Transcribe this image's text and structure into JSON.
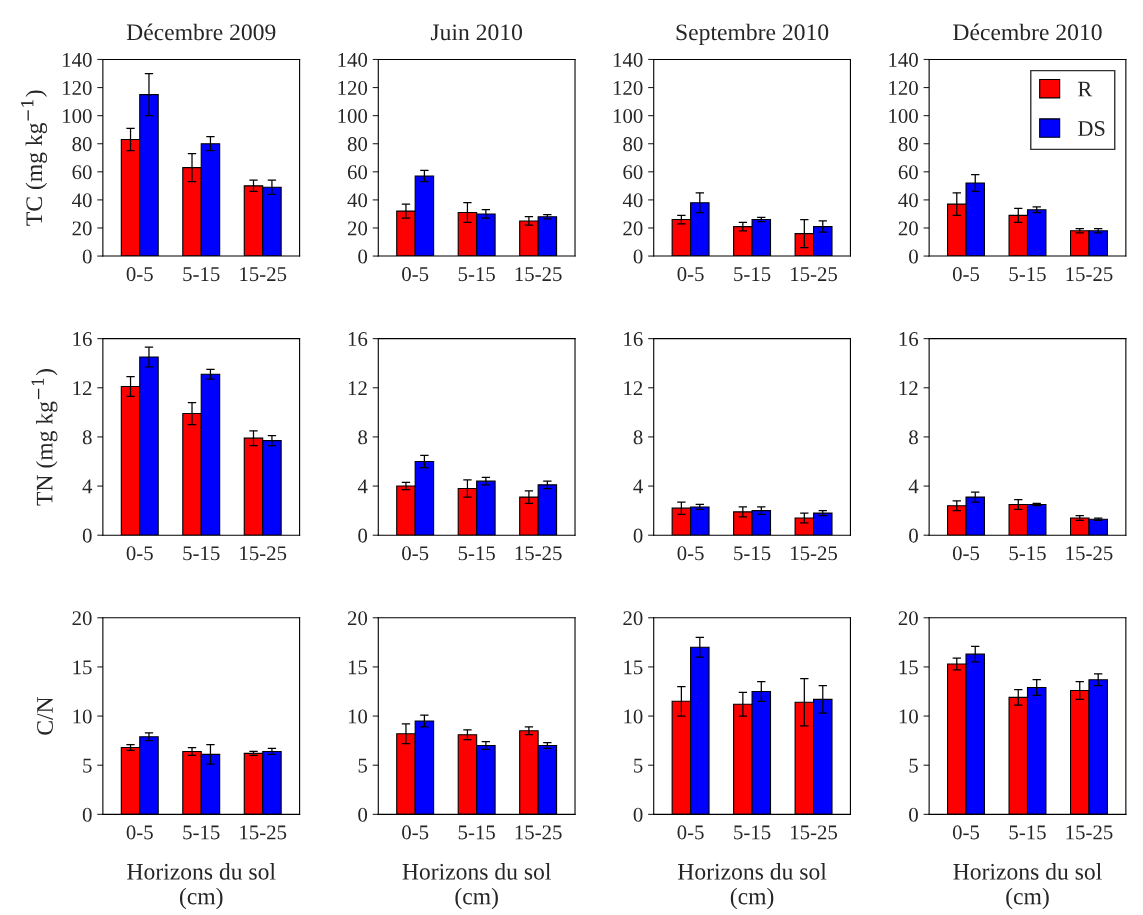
{
  "chart_data": [
    {
      "type": "bar",
      "title": "Décembre 2009",
      "ylabel": "TC (mg kg$^{−1}$)",
      "categories": [
        "0-5",
        "5-15",
        "15-25"
      ],
      "ylim": [
        0,
        140
      ],
      "yticks": [
        0,
        20,
        40,
        60,
        80,
        100,
        120,
        140
      ],
      "series": [
        {
          "color": "#ff0000",
          "values": [
            83,
            63,
            50
          ],
          "errors": [
            8,
            10,
            4
          ]
        },
        {
          "color": "#0000ff",
          "values": [
            115,
            80,
            49
          ],
          "errors": [
            15,
            5,
            5
          ]
        }
      ]
    },
    {
      "type": "bar",
      "title": "Juin 2010",
      "categories": [
        "0-5",
        "5-15",
        "15-25"
      ],
      "ylim": [
        0,
        140
      ],
      "yticks": [
        0,
        20,
        40,
        60,
        80,
        100,
        120,
        140
      ],
      "series": [
        {
          "color": "#ff0000",
          "values": [
            32,
            31,
            25
          ],
          "errors": [
            5,
            7,
            3
          ]
        },
        {
          "color": "#0000ff",
          "values": [
            57,
            30,
            28
          ],
          "errors": [
            4,
            3,
            1.5
          ]
        }
      ]
    },
    {
      "type": "bar",
      "title": "Septembre 2010",
      "categories": [
        "0-5",
        "5-15",
        "15-25"
      ],
      "ylim": [
        0,
        140
      ],
      "yticks": [
        0,
        20,
        40,
        60,
        80,
        100,
        120,
        140
      ],
      "series": [
        {
          "color": "#ff0000",
          "values": [
            26,
            21,
            16
          ],
          "errors": [
            3,
            3,
            10
          ]
        },
        {
          "color": "#0000ff",
          "values": [
            38,
            26,
            21
          ],
          "errors": [
            7,
            1.5,
            4
          ]
        }
      ]
    },
    {
      "type": "bar",
      "title": "Décembre 2010",
      "categories": [
        "0-5",
        "5-15",
        "15-25"
      ],
      "ylim": [
        0,
        140
      ],
      "yticks": [
        0,
        20,
        40,
        60,
        80,
        100,
        120,
        140
      ],
      "legend": "top right",
      "series": [
        {
          "name": "R",
          "color": "#ff0000",
          "values": [
            37,
            29,
            18
          ],
          "errors": [
            8,
            5,
            1.5
          ]
        },
        {
          "name": "DS",
          "color": "#0000ff",
          "values": [
            52,
            33,
            18
          ],
          "errors": [
            6,
            2,
            1.5
          ]
        }
      ]
    },
    {
      "type": "bar",
      "ylabel": "TN (mg kg$^{−1}$)",
      "categories": [
        "0-5",
        "5-15",
        "15-25"
      ],
      "ylim": [
        0,
        16
      ],
      "yticks": [
        0,
        4,
        8,
        12,
        16
      ],
      "series": [
        {
          "color": "#ff0000",
          "values": [
            12.1,
            9.9,
            7.9
          ],
          "errors": [
            0.8,
            0.9,
            0.6
          ]
        },
        {
          "color": "#0000ff",
          "values": [
            14.5,
            13.1,
            7.7
          ],
          "errors": [
            0.8,
            0.4,
            0.4
          ]
        }
      ]
    },
    {
      "type": "bar",
      "categories": [
        "0-5",
        "5-15",
        "15-25"
      ],
      "ylim": [
        0,
        16
      ],
      "yticks": [
        0,
        4,
        8,
        12,
        16
      ],
      "series": [
        {
          "color": "#ff0000",
          "values": [
            4.0,
            3.8,
            3.1
          ],
          "errors": [
            0.3,
            0.7,
            0.5
          ]
        },
        {
          "color": "#0000ff",
          "values": [
            6.0,
            4.4,
            4.1
          ],
          "errors": [
            0.5,
            0.3,
            0.3
          ]
        }
      ]
    },
    {
      "type": "bar",
      "categories": [
        "0-5",
        "5-15",
        "15-25"
      ],
      "ylim": [
        0,
        16
      ],
      "yticks": [
        0,
        4,
        8,
        12,
        16
      ],
      "series": [
        {
          "color": "#ff0000",
          "values": [
            2.2,
            1.9,
            1.4
          ],
          "errors": [
            0.5,
            0.4,
            0.4
          ]
        },
        {
          "color": "#0000ff",
          "values": [
            2.3,
            2.0,
            1.8
          ],
          "errors": [
            0.2,
            0.3,
            0.2
          ]
        }
      ]
    },
    {
      "type": "bar",
      "categories": [
        "0-5",
        "5-15",
        "15-25"
      ],
      "ylim": [
        0,
        16
      ],
      "yticks": [
        0,
        4,
        8,
        12,
        16
      ],
      "series": [
        {
          "color": "#ff0000",
          "values": [
            2.4,
            2.5,
            1.4
          ],
          "errors": [
            0.4,
            0.4,
            0.2
          ]
        },
        {
          "color": "#0000ff",
          "values": [
            3.1,
            2.5,
            1.3
          ],
          "errors": [
            0.4,
            0.1,
            0.1
          ]
        }
      ]
    },
    {
      "type": "bar",
      "ylabel": "C/N",
      "xlabel": "Horizons du sol\n(cm)",
      "categories": [
        "0-5",
        "5-15",
        "15-25"
      ],
      "ylim": [
        0,
        20
      ],
      "yticks": [
        0,
        5,
        10,
        15,
        20
      ],
      "series": [
        {
          "color": "#ff0000",
          "values": [
            6.8,
            6.4,
            6.2
          ],
          "errors": [
            0.3,
            0.4,
            0.2
          ]
        },
        {
          "color": "#0000ff",
          "values": [
            7.9,
            6.1,
            6.4
          ],
          "errors": [
            0.4,
            1.0,
            0.3
          ]
        }
      ]
    },
    {
      "type": "bar",
      "xlabel": "Horizons du sol\n(cm)",
      "categories": [
        "0-5",
        "5-15",
        "15-25"
      ],
      "ylim": [
        0,
        20
      ],
      "yticks": [
        0,
        5,
        10,
        15,
        20
      ],
      "series": [
        {
          "color": "#ff0000",
          "values": [
            8.2,
            8.1,
            8.5
          ],
          "errors": [
            1.0,
            0.5,
            0.4
          ]
        },
        {
          "color": "#0000ff",
          "values": [
            9.5,
            7.0,
            7.0
          ],
          "errors": [
            0.6,
            0.4,
            0.3
          ]
        }
      ]
    },
    {
      "type": "bar",
      "xlabel": "Horizons du sol\n(cm)",
      "categories": [
        "0-5",
        "5-15",
        "15-25"
      ],
      "ylim": [
        0,
        20
      ],
      "yticks": [
        0,
        5,
        10,
        15,
        20
      ],
      "series": [
        {
          "color": "#ff0000",
          "values": [
            11.5,
            11.2,
            11.4
          ],
          "errors": [
            1.5,
            1.2,
            2.4
          ]
        },
        {
          "color": "#0000ff",
          "values": [
            17.0,
            12.5,
            11.7
          ],
          "errors": [
            1.0,
            1.0,
            1.4
          ]
        }
      ]
    },
    {
      "type": "bar",
      "xlabel": "Horizons du sol\n(cm)",
      "categories": [
        "0-5",
        "5-15",
        "15-25"
      ],
      "ylim": [
        0,
        20
      ],
      "yticks": [
        0,
        5,
        10,
        15,
        20
      ],
      "series": [
        {
          "color": "#ff0000",
          "values": [
            15.3,
            11.9,
            12.6
          ],
          "errors": [
            0.6,
            0.8,
            0.9
          ]
        },
        {
          "color": "#0000ff",
          "values": [
            16.3,
            12.9,
            13.7
          ],
          "errors": [
            0.8,
            0.8,
            0.6
          ]
        }
      ]
    }
  ]
}
